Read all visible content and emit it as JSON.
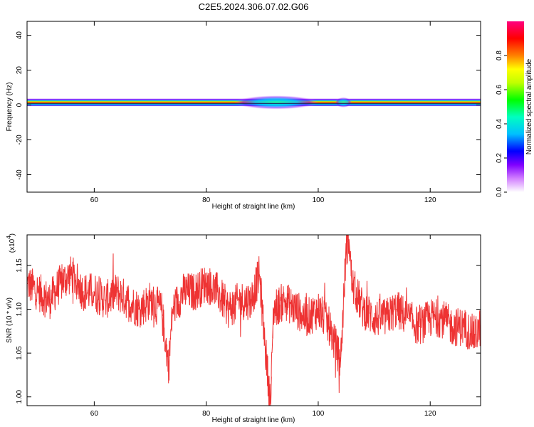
{
  "title": "C2E5.2024.306.07.02.G06",
  "chart_data": [
    {
      "type": "heatmap",
      "xlabel": "Height of straight line (km)",
      "ylabel": "Frequency (Hz)",
      "xlim": [
        48,
        129
      ],
      "ylim": [
        -50,
        48
      ],
      "xticks": [
        60,
        80,
        100,
        120
      ],
      "yticks": [
        40,
        20,
        0,
        -20,
        -40
      ],
      "band_center_hz": 1.5,
      "colorbar": {
        "label": "Normalized spectral amplitude",
        "range": [
          0.0,
          1.0
        ],
        "ticks": [
          "0.0",
          "0.2",
          "0.4",
          "0.6",
          "0.8"
        ],
        "colors": [
          "#ffffff",
          "#d280ff",
          "#8000ff",
          "#0000ff",
          "#00c0ff",
          "#00ffc0",
          "#00ff00",
          "#c0ff00",
          "#ffff00",
          "#ff8000",
          "#ff0000",
          "#ff0080"
        ]
      },
      "band_segments": [
        {
          "x": [
            48,
            129
          ],
          "half_width_hz": 2.2,
          "peak": 0.95
        },
        {
          "x": [
            85,
            100
          ],
          "half_width_hz": 4.0,
          "peak": 0.55
        },
        {
          "x": [
            103,
            106
          ],
          "half_width_hz": 3.0,
          "peak": 0.4
        }
      ]
    },
    {
      "type": "line",
      "xlabel": "Height of straight line (km)",
      "ylabel": "SNR (10 * v/v)",
      "y_multiplier": "(x10",
      "y_multiplier_exp": "4",
      "y_multiplier_close": ")",
      "xlim": [
        48,
        129
      ],
      "ylim": [
        0.99,
        1.185
      ],
      "xticks": [
        60,
        80,
        100,
        120
      ],
      "yticks": [
        1.0,
        1.05,
        1.1,
        1.15
      ],
      "ytick_labels": [
        "1.00",
        "1.05",
        "1.10",
        "1.15"
      ],
      "color": "#ee3333",
      "series": [
        {
          "x": [
            48,
            50,
            52,
            54,
            56,
            58,
            60,
            62,
            64,
            66,
            68,
            70,
            72,
            73.3,
            74,
            76,
            78,
            80,
            82,
            84,
            86,
            88,
            89.5,
            90.5,
            91.5,
            92,
            94,
            96,
            98,
            100,
            102,
            104,
            105,
            105.5,
            106,
            108,
            110,
            112,
            114,
            116,
            118,
            120,
            122,
            124,
            126,
            128,
            129
          ],
          "y": [
            1.13,
            1.12,
            1.11,
            1.13,
            1.14,
            1.12,
            1.12,
            1.11,
            1.12,
            1.11,
            1.1,
            1.11,
            1.1,
            1.035,
            1.1,
            1.12,
            1.12,
            1.13,
            1.12,
            1.1,
            1.11,
            1.11,
            1.14,
            1.06,
            0.99,
            1.1,
            1.11,
            1.1,
            1.09,
            1.1,
            1.08,
            1.04,
            1.17,
            1.18,
            1.13,
            1.1,
            1.09,
            1.09,
            1.1,
            1.09,
            1.08,
            1.09,
            1.09,
            1.08,
            1.08,
            1.07,
            1.08
          ]
        }
      ]
    }
  ]
}
